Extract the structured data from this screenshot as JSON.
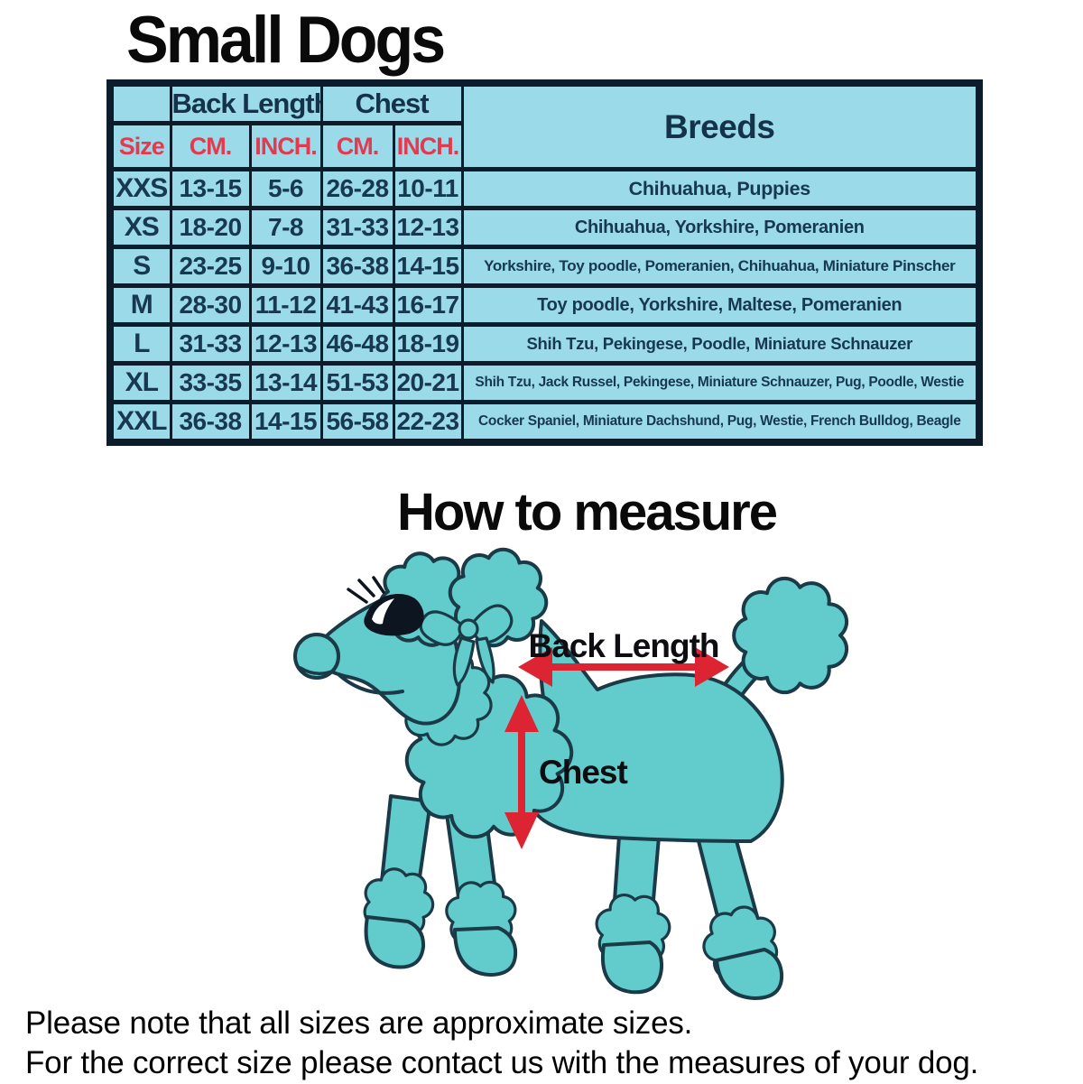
{
  "page": {
    "title": "Small Dogs",
    "section_title": "How to measure",
    "footer": {
      "line1": "Please note that all sizes are approximate sizes.",
      "line2": "For the correct size please contact us with the measures of your dog."
    }
  },
  "size_table": {
    "group_headers": {
      "size_blank": "",
      "back_length": "Back Length",
      "chest": "Chest",
      "breeds": "Breeds"
    },
    "sub_headers": {
      "size": "Size",
      "back_cm": "CM.",
      "back_inch": "INCH.",
      "chest_cm": "CM.",
      "chest_inch": "INCH."
    },
    "rows": [
      {
        "size": "XXS",
        "back_cm": "13-15",
        "back_inch": "5-6",
        "chest_cm": "26-28",
        "chest_inch": "10-11",
        "breeds": "Chihuahua, Puppies"
      },
      {
        "size": "XS",
        "back_cm": "18-20",
        "back_inch": "7-8",
        "chest_cm": "31-33",
        "chest_inch": "12-13",
        "breeds": "Chihuahua, Yorkshire, Pomeranien"
      },
      {
        "size": "S",
        "back_cm": "23-25",
        "back_inch": "9-10",
        "chest_cm": "36-38",
        "chest_inch": "14-15",
        "breeds": "Yorkshire, Toy poodle, Pomeranien, Chihuahua, Miniature Pinscher"
      },
      {
        "size": "M",
        "back_cm": "28-30",
        "back_inch": "11-12",
        "chest_cm": "41-43",
        "chest_inch": "16-17",
        "breeds": "Toy poodle, Yorkshire, Maltese, Pomeranien"
      },
      {
        "size": "L",
        "back_cm": "31-33",
        "back_inch": "12-13",
        "chest_cm": "46-48",
        "chest_inch": "18-19",
        "breeds": "Shih Tzu, Pekingese, Poodle, Miniature Schnauzer"
      },
      {
        "size": "XL",
        "back_cm": "33-35",
        "back_inch": "13-14",
        "chest_cm": "51-53",
        "chest_inch": "20-21",
        "breeds": "Shih Tzu, Jack Russel, Pekingese, Miniature Schnauzer, Pug, Poodle, Westie"
      },
      {
        "size": "XXL",
        "back_cm": "36-38",
        "back_inch": "14-15",
        "chest_cm": "56-58",
        "chest_inch": "22-23",
        "breeds": "Cocker Spaniel, Miniature Dachshund, Pug, Westie, French Bulldog, Beagle"
      }
    ]
  },
  "diagram": {
    "back_length_label": "Back Length",
    "chest_label": "Chest"
  },
  "colors": {
    "table_cell_bg": "#9bdae8",
    "table_border": "#0c1c2b",
    "header_accent_red": "#e43a50",
    "table_text_navy": "#173850",
    "dog_fill_teal": "#62cbcb",
    "dog_outline": "#1b3a47",
    "arrow_red": "#dc2433"
  }
}
